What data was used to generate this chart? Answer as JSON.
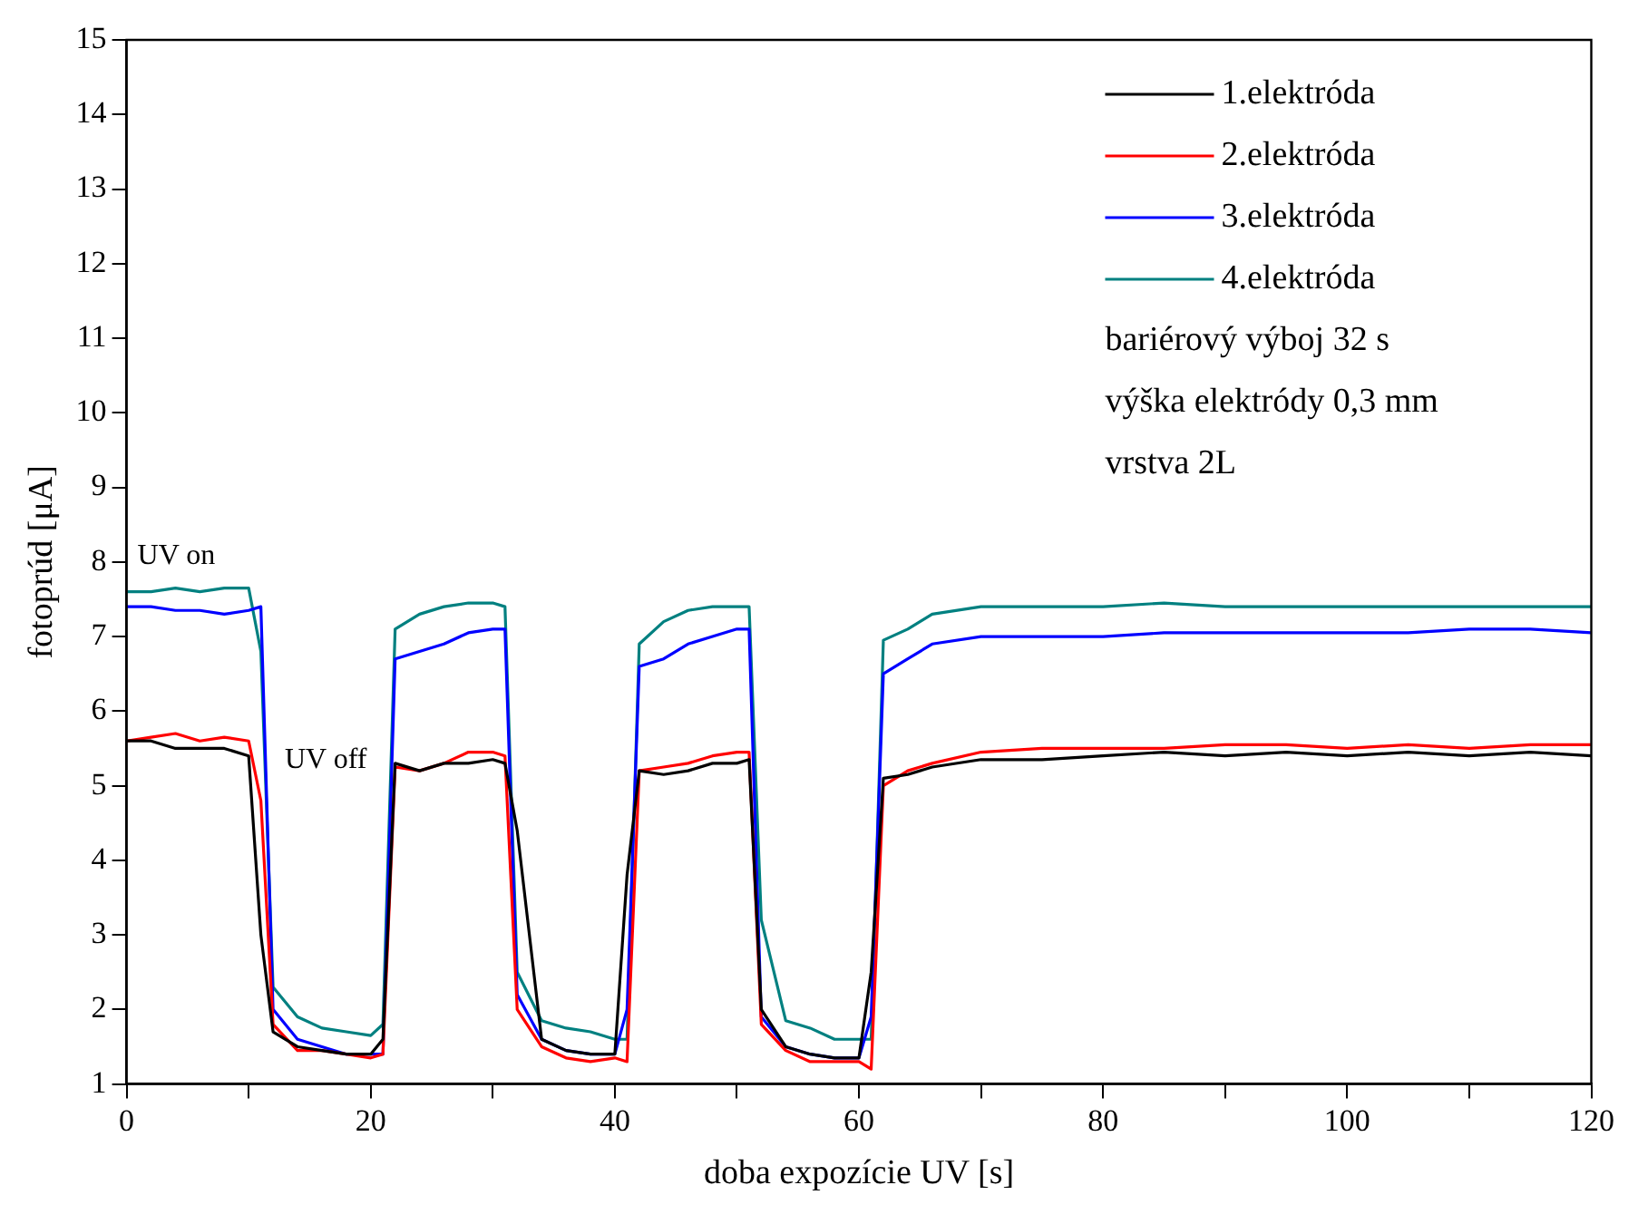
{
  "chart_data": {
    "type": "line",
    "xlabel": "doba expozície UV [s]",
    "ylabel": "fotoprúd [μA]",
    "x": [
      0,
      2,
      4,
      6,
      8,
      10,
      11,
      12,
      14,
      16,
      18,
      20,
      21,
      22,
      24,
      26,
      28,
      30,
      31,
      32,
      34,
      36,
      38,
      40,
      41,
      42,
      44,
      46,
      48,
      50,
      51,
      52,
      54,
      56,
      58,
      60,
      61,
      62,
      64,
      66,
      70,
      75,
      80,
      85,
      90,
      95,
      100,
      105,
      110,
      115,
      120
    ],
    "series": [
      {
        "name": "1.elektróda",
        "color": "#000000",
        "values": [
          5.6,
          5.6,
          5.5,
          5.5,
          5.5,
          5.4,
          3.0,
          1.7,
          1.5,
          1.45,
          1.4,
          1.4,
          1.6,
          5.3,
          5.2,
          5.3,
          5.3,
          5.35,
          5.3,
          4.4,
          1.6,
          1.45,
          1.4,
          1.4,
          3.8,
          5.2,
          5.15,
          5.2,
          5.3,
          5.3,
          5.35,
          2.0,
          1.5,
          1.4,
          1.35,
          1.35,
          2.5,
          5.1,
          5.15,
          5.25,
          5.35,
          5.35,
          5.4,
          5.45,
          5.4,
          5.45,
          5.4,
          5.45,
          5.4,
          5.45,
          5.4
        ]
      },
      {
        "name": "2.elektróda",
        "color": "#ff0000",
        "values": [
          5.6,
          5.65,
          5.7,
          5.6,
          5.65,
          5.6,
          4.8,
          1.8,
          1.45,
          1.45,
          1.4,
          1.35,
          1.4,
          5.25,
          5.2,
          5.3,
          5.45,
          5.45,
          5.4,
          2.0,
          1.5,
          1.35,
          1.3,
          1.35,
          1.3,
          5.2,
          5.25,
          5.3,
          5.4,
          5.45,
          5.45,
          1.8,
          1.45,
          1.3,
          1.3,
          1.3,
          1.2,
          5.0,
          5.2,
          5.3,
          5.45,
          5.5,
          5.5,
          5.5,
          5.55,
          5.55,
          5.5,
          5.55,
          5.5,
          5.55,
          5.55
        ]
      },
      {
        "name": "3.elektróda",
        "color": "#0000ff",
        "values": [
          7.4,
          7.4,
          7.35,
          7.35,
          7.3,
          7.35,
          7.4,
          2.0,
          1.6,
          1.5,
          1.4,
          1.4,
          1.4,
          6.7,
          6.8,
          6.9,
          7.05,
          7.1,
          7.1,
          2.2,
          1.6,
          1.45,
          1.4,
          1.4,
          2.0,
          6.6,
          6.7,
          6.9,
          7.0,
          7.1,
          7.1,
          1.9,
          1.5,
          1.4,
          1.35,
          1.35,
          1.9,
          6.5,
          6.7,
          6.9,
          7.0,
          7.0,
          7.0,
          7.05,
          7.05,
          7.05,
          7.05,
          7.05,
          7.1,
          7.1,
          7.05
        ]
      },
      {
        "name": "4.elektróda",
        "color": "#008080",
        "values": [
          7.6,
          7.6,
          7.65,
          7.6,
          7.65,
          7.65,
          6.8,
          2.3,
          1.9,
          1.75,
          1.7,
          1.65,
          1.8,
          7.1,
          7.3,
          7.4,
          7.45,
          7.45,
          7.4,
          2.5,
          1.85,
          1.75,
          1.7,
          1.6,
          1.6,
          6.9,
          7.2,
          7.35,
          7.4,
          7.4,
          7.4,
          3.2,
          1.85,
          1.75,
          1.6,
          1.6,
          1.6,
          6.95,
          7.1,
          7.3,
          7.4,
          7.4,
          7.4,
          7.45,
          7.4,
          7.4,
          7.4,
          7.4,
          7.4,
          7.4,
          7.4
        ]
      }
    ],
    "xlim": [
      0,
      120
    ],
    "xticks": [
      0,
      {
        "value": 10,
        "label": null
      },
      20,
      {
        "value": 30,
        "label": null
      },
      40,
      {
        "value": 50,
        "label": null
      },
      60,
      {
        "value": 70,
        "label": null
      },
      80,
      {
        "value": 90,
        "label": null
      },
      100,
      {
        "value": 110,
        "label": null
      },
      120
    ],
    "ylim": [
      1,
      15
    ],
    "yticks": [
      1,
      2,
      3,
      4,
      5,
      6,
      7,
      8,
      9,
      10,
      11,
      12,
      13,
      14,
      15
    ],
    "grid": false,
    "legend": "top right",
    "marker": "none",
    "line_style": "solid",
    "annotations": [
      "bariérový výboj 32 s",
      "výška elektródy 0,3 mm",
      "vrstva 2L",
      "UV on",
      "UV off"
    ]
  }
}
